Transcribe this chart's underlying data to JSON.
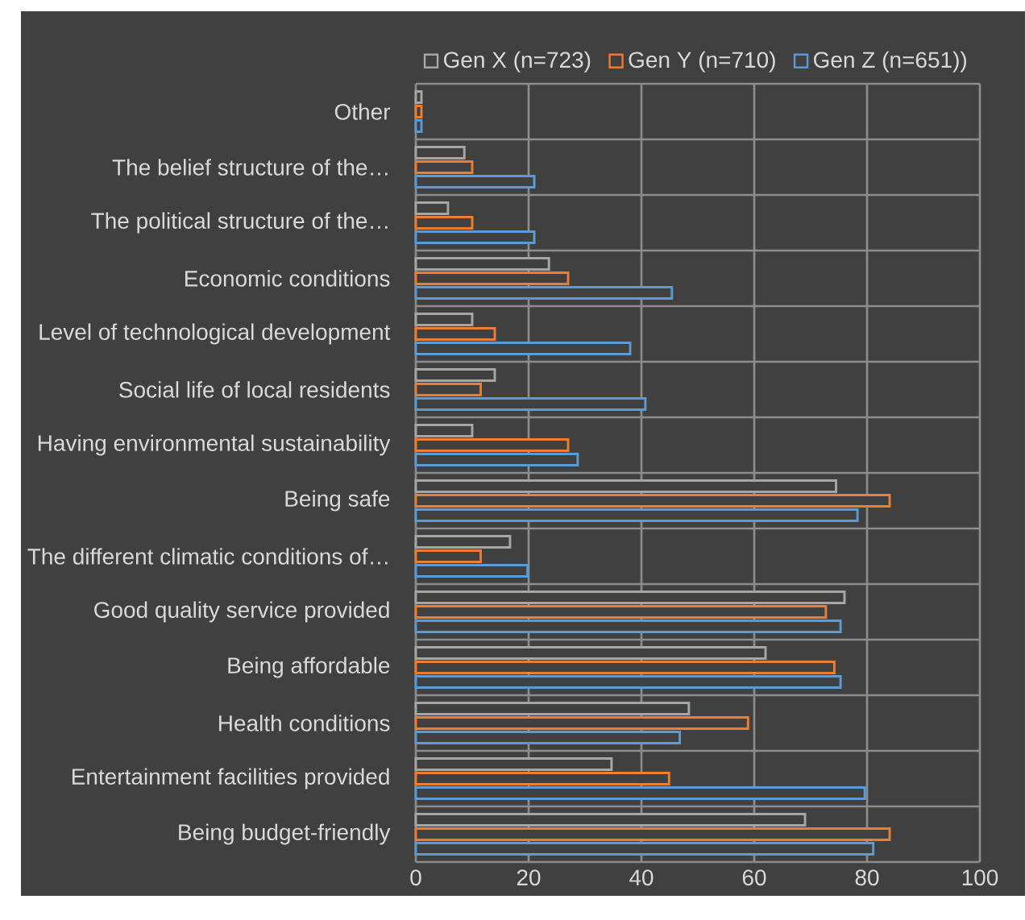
{
  "chart_data": {
    "type": "bar",
    "orientation": "horizontal",
    "categories": [
      "Other",
      "The belief structure of the…",
      "The political structure of the…",
      "Economic conditions",
      "Level of technological development",
      "Social life of local residents",
      "Having environmental sustainability",
      "Being safe",
      "The different climatic conditions of…",
      "Good quality service provided",
      "Being affordable",
      "Health conditions",
      "Entertainment facilities provided",
      "Being budget-friendly"
    ],
    "series": [
      {
        "name": "Gen X (n=723)",
        "color": "#a6a6a6",
        "values": [
          1,
          8.6,
          5.7,
          23.6,
          10,
          14,
          10,
          74.5,
          16.7,
          76,
          62,
          48.4,
          34.7,
          69
        ]
      },
      {
        "name": "Gen Y (n=710)",
        "color": "#ed7d31",
        "values": [
          1,
          10,
          10,
          27,
          14,
          11.5,
          27,
          84,
          11.5,
          72.7,
          74.2,
          58.9,
          44.9,
          84
        ]
      },
      {
        "name": "Gen Z (n=651))",
        "color": "#5b9bd5",
        "values": [
          1,
          21,
          21,
          45.4,
          38,
          40.7,
          28.7,
          78.3,
          19.8,
          75.3,
          75.3,
          46.8,
          79.6,
          81.1
        ]
      }
    ],
    "xlim": [
      0,
      100
    ],
    "xticks": [
      0,
      20,
      40,
      60,
      80,
      100
    ],
    "grid": true,
    "legend": "top"
  }
}
